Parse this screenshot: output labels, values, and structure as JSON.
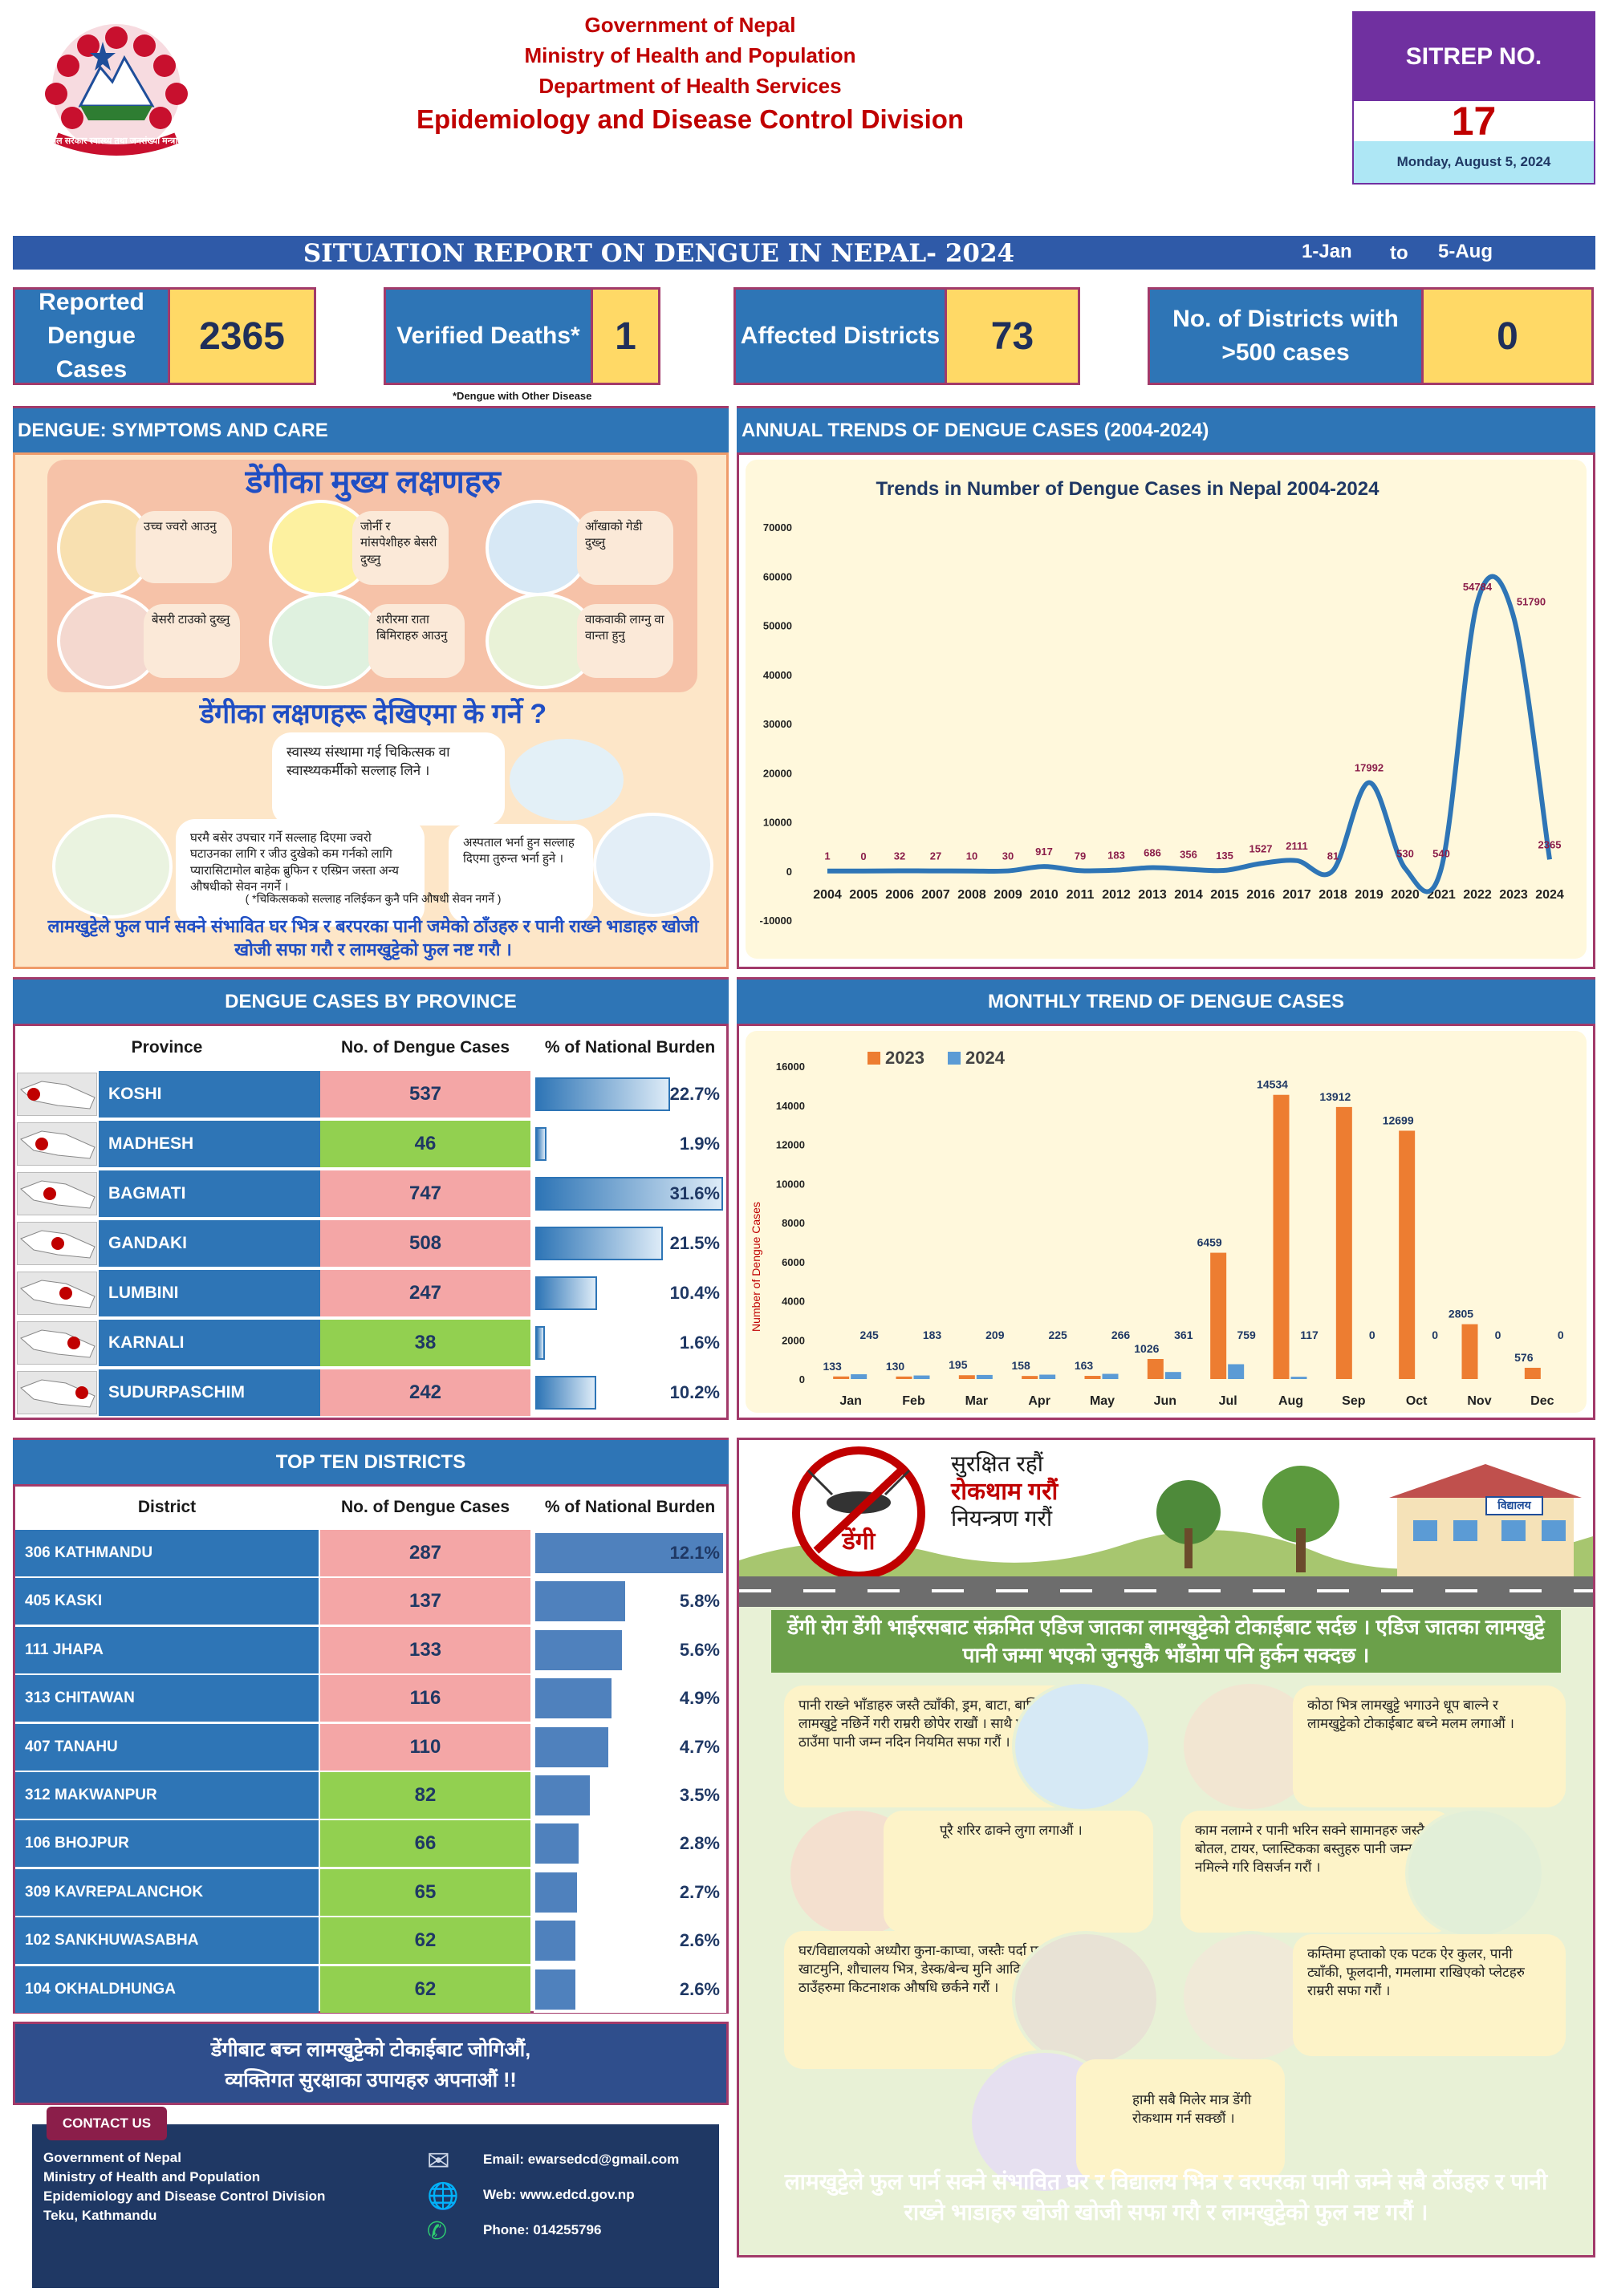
{
  "header": {
    "gov": "Government of Nepal",
    "ministry": "Ministry of Health and Population",
    "department": "Department of Health Services",
    "division": "Epidemiology and Disease Control Division",
    "emblem_text": "नेपाल सरकार स्वास्थ्य तथा जनसंख्या मन्त्रालय"
  },
  "sitrep": {
    "label": "SITREP NO.",
    "number": "17",
    "date": "Monday, August 5, 2024"
  },
  "title_bar": {
    "title": "SITUATION REPORT ON DENGUE IN NEPAL- 2024",
    "from": "1-Jan",
    "to_word": "to",
    "to": "5-Aug"
  },
  "kpis": [
    {
      "label": "Reported Dengue Cases",
      "value": "2365"
    },
    {
      "label": "Verified Deaths*",
      "value": "1"
    },
    {
      "label": "Affected Districts",
      "value": "73"
    },
    {
      "label": "No. of Districts with >500 cases",
      "value": "0"
    }
  ],
  "deaths_note": "*Dengue with Other Disease",
  "symptoms": {
    "heading": "DENGUE: SYMPTOMS AND CARE",
    "poster_title": "डेंगीका मुख्य लक्षणहरु",
    "items": [
      "उच्च ज्वरो आउनु",
      "जोर्नी र मांसपेशीहरु बेसरी दुख्नु",
      "आँखाको गेडी दुख्नु",
      "बेसरी टाउको दुख्नु",
      "शरीरमा राता बिमिराहरु आउनु",
      "वाकवाकी लाग्नु वा वान्ता हुनु"
    ],
    "what_to_do": "डेंगीका लक्षणहरू देखिएमा के गर्ने ?",
    "care": [
      "स्वास्थ्य संस्थामा गई चिकित्सक वा स्वास्थ्यकर्मीको सल्लाह लिने ।",
      "घरमै बसेर उपचार गर्ने सल्लाह दिएमा ज्वरो घटाउनका लागि र जीउ दुखेको कम गर्नको लागि प्यारासिटामोल बाहेक ब्रुफिन र एस्प्रिन जस्ता अन्य औषधीको सेवन नगर्ने ।",
      "अस्पताल भर्ना हुन सल्लाह दिएमा तुरुन्त भर्ना हुने ।"
    ],
    "note": "( *चिकित्सकको सल्लाह नलिईकन कुनै पनि औषधी सेवन नगर्ने )",
    "footer": "लामखुट्टेले फुल पार्न सक्ने संभावित घर भित्र र बरपरका पानी जमेको ठाँउहरु र पानी राख्ने भाडाहरु खोजी खोजी सफा गरौ र लामखुट्टेको फुल नष्ट गरौ ।"
  },
  "annual": {
    "heading": "ANNUAL TRENDS OF DENGUE CASES (2004-2024)",
    "chart_data": {
      "type": "line",
      "title": "Trends in Number of Dengue Cases in Nepal 2004-2024",
      "x": [
        "2004",
        "2005",
        "2006",
        "2007",
        "2008",
        "2009",
        "2010",
        "2011",
        "2012",
        "2013",
        "2014",
        "2015",
        "2016",
        "2017",
        "2018",
        "2019",
        "2020",
        "2021",
        "2022",
        "2023",
        "2024"
      ],
      "values": [
        1,
        0,
        32,
        27,
        10,
        30,
        917,
        79,
        183,
        686,
        356,
        135,
        1527,
        2111,
        81,
        17992,
        530,
        540,
        54784,
        51790,
        2365
      ],
      "labels": [
        "1",
        "0",
        "32",
        "27",
        "10",
        "30",
        "917",
        "79",
        "183",
        "686",
        "356",
        "135",
        "1527",
        "2111",
        "81",
        "17992",
        "530",
        "540",
        "54784",
        "51790",
        "2365"
      ],
      "yticks": [
        "70000",
        "60000",
        "50000",
        "40000",
        "30000",
        "20000",
        "10000",
        "0",
        "-10000"
      ],
      "ylim": [
        -10000,
        70000
      ],
      "color": "#2e75b6"
    }
  },
  "province": {
    "heading": "DENGUE CASES BY PROVINCE",
    "columns": [
      "Province",
      "No. of Dengue Cases",
      "% of National Burden"
    ],
    "rows": [
      {
        "name": "KOSHI",
        "cases": "537",
        "pct": "22.7%",
        "pct_value": 22.7,
        "hi": true
      },
      {
        "name": "MADHESH",
        "cases": "46",
        "pct": "1.9%",
        "pct_value": 1.9,
        "hi": false
      },
      {
        "name": "BAGMATI",
        "cases": "747",
        "pct": "31.6%",
        "pct_value": 31.6,
        "hi": true
      },
      {
        "name": "GANDAKI",
        "cases": "508",
        "pct": "21.5%",
        "pct_value": 21.5,
        "hi": true
      },
      {
        "name": "LUMBINI",
        "cases": "247",
        "pct": "10.4%",
        "pct_value": 10.4,
        "hi": true
      },
      {
        "name": "KARNALI",
        "cases": "38",
        "pct": "1.6%",
        "pct_value": 1.6,
        "hi": false
      },
      {
        "name": "SUDURPASCHIM",
        "cases": "242",
        "pct": "10.2%",
        "pct_value": 10.2,
        "hi": true
      }
    ]
  },
  "monthly": {
    "heading": "MONTHLY TREND OF DENGUE CASES",
    "chart_data": {
      "type": "bar",
      "categories": [
        "Jan",
        "Feb",
        "Mar",
        "Apr",
        "May",
        "Jun",
        "Jul",
        "Aug",
        "Sep",
        "Oct",
        "Nov",
        "Dec"
      ],
      "series": [
        {
          "name": "2023",
          "color": "#ed7d31",
          "values": [
            133,
            130,
            195,
            158,
            163,
            1026,
            6459,
            14534,
            13912,
            12699,
            2805,
            576
          ]
        },
        {
          "name": "2024",
          "color": "#5b9bd5",
          "values": [
            245,
            183,
            209,
            225,
            266,
            361,
            759,
            117,
            0,
            0,
            0,
            0
          ]
        }
      ],
      "ylabel": "Number of Dengue Cases",
      "yticks": [
        "16000",
        "14000",
        "12000",
        "10000",
        "8000",
        "6000",
        "4000",
        "2000",
        "0"
      ],
      "ylim": [
        0,
        16000
      ]
    }
  },
  "districts": {
    "heading": "TOP TEN DISTRICTS",
    "columns": [
      "District",
      "No. of Dengue Cases",
      "% of National Burden"
    ],
    "rows": [
      {
        "name": "306 KATHMANDU",
        "cases": "287",
        "pct": "12.1%",
        "pct_value": 12.1,
        "hi": true
      },
      {
        "name": "405 KASKI",
        "cases": "137",
        "pct": "5.8%",
        "pct_value": 5.8,
        "hi": true
      },
      {
        "name": "111 JHAPA",
        "cases": "133",
        "pct": "5.6%",
        "pct_value": 5.6,
        "hi": true
      },
      {
        "name": "313 CHITAWAN",
        "cases": "116",
        "pct": "4.9%",
        "pct_value": 4.9,
        "hi": true
      },
      {
        "name": "407 TANAHU",
        "cases": "110",
        "pct": "4.7%",
        "pct_value": 4.7,
        "hi": true
      },
      {
        "name": "312 MAKWANPUR",
        "cases": "82",
        "pct": "3.5%",
        "pct_value": 3.5,
        "hi": false
      },
      {
        "name": "106 BHOJPUR",
        "cases": "66",
        "pct": "2.8%",
        "pct_value": 2.8,
        "hi": false
      },
      {
        "name": "309 KAVREPALANCHOK",
        "cases": "65",
        "pct": "2.7%",
        "pct_value": 2.7,
        "hi": false
      },
      {
        "name": "102 SANKHUWASABHA",
        "cases": "62",
        "pct": "2.6%",
        "pct_value": 2.6,
        "hi": false
      },
      {
        "name": "104 OKHALDHUNGA",
        "cases": "62",
        "pct": "2.6%",
        "pct_value": 2.6,
        "hi": false
      }
    ]
  },
  "slogan": {
    "line1": "डेंगीबाट बच्न लामखुट्टेको टोकाईबाट जोगिऔं,",
    "line2": "व्यक्तिगत सुरक्षाका उपायहरु अपनाऔं !!"
  },
  "contact": {
    "title": "CONTACT US",
    "lines": [
      "Government of Nepal",
      "Ministry of Health and Population",
      "Epidemiology and Disease Control Division",
      "Teku, Kathmandu"
    ],
    "email": "Email: ewarsedcd@gmail.com",
    "web": "Web: www.edcd.gov.np",
    "phone": "Phone: 014255796"
  },
  "prevention": {
    "badge_top": "सुरक्षित रहौं",
    "badge_mid": "रोकथाम गरौं",
    "badge_bot": "नियन्त्रण गरौं",
    "logo_word": "डेंगी",
    "school": "विद्यालय",
    "intro": "डेंगी रोग डेंगी भाईरसबाट संक्रमित एडिज जातका लामखुट्टेको टोकाईबाट सर्दछ । एडिज जातका लामखुट्टे पानी जम्मा भएको जुनसुकै भाँडोमा पनि हुर्कन सक्दछ ।",
    "tips": [
      "पानी राख्ने भाँडाहरु जस्तै ट्याँकी, ड्रम, बाटा, बाल्टिन आदिलाई लामखुट्टे नछिर्ने गरी राम्ररी छोपेर राखौं । साथै पानी जम्न सक्ने ठाउँमा पानी जम्न नदिन नियमित सफा गरौं ।",
      "कोठा भित्र लामखुट्टे भगाउने धूप बाल्ने र लामखुट्टेको टोकाईबाट बच्ने मलम लगाऔं ।",
      "पूरै शरिर ढाक्ने लुगा लगाऔं ।",
      "काम नलाग्ने र पानी भरिन सक्ने सामानहरु जस्तै बोतल, टायर, प्लास्टिकका बस्तुहरु पानी जम्न नमिल्ने गरि विसर्जन गरौं ।",
      "घर/विद्यालयको अध्यौरा कुना-काप्चा, जस्तैः पर्दा पछाडी, खाटमुनि, शौचालय भित्र, डेस्क/बेन्च मुनि आदि जस्ता ठाउँहरुमा किटनाशक औषधि छर्कने गरौं ।",
      "कम्तिमा हप्ताको एक पटक ऐर कुलर, पानी ट्याँकी, फूलदानी, गमलामा राखिएको प्लेटहरु राम्ररी सफा गरौं ।",
      "हामी सबै मिलेर मात्र डेंगी रोकथाम गर्न सक्छौं ।"
    ],
    "footer": "लामखुट्टेले फुल पार्न सक्ने संभावित घर र विद्यालय भित्र र वरपरका पानी जम्ने सबै ठाँउहरु र पानी राख्ने भाडाहरु खोजी खोजी सफा गरौ र लामखुट्टेको फुल नष्ट गरौं ।"
  },
  "colors": {
    "accent": "#2e75b6",
    "header_red": "#c00000",
    "kpi_yellow": "#ffd966",
    "sitrep_purple": "#7030a0"
  }
}
